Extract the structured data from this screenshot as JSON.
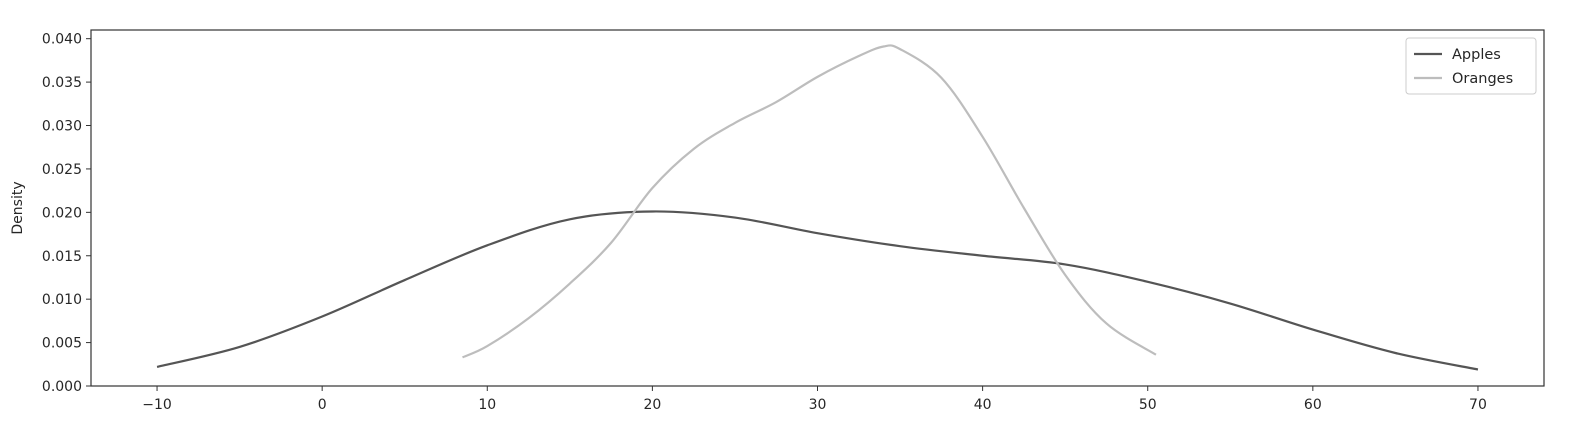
{
  "chart_data": {
    "type": "line",
    "title": "",
    "xlabel": "",
    "ylabel": "Density",
    "xlim": [
      -14,
      74
    ],
    "ylim": [
      0,
      0.041
    ],
    "xticks": [
      -10,
      0,
      10,
      20,
      30,
      40,
      50,
      60,
      70
    ],
    "xtick_labels": [
      "−10",
      "0",
      "10",
      "20",
      "30",
      "40",
      "50",
      "60",
      "70"
    ],
    "yticks": [
      0,
      0.005,
      0.01,
      0.015,
      0.02,
      0.025,
      0.03,
      0.035,
      0.04
    ],
    "ytick_labels": [
      "0.000",
      "0.005",
      "0.010",
      "0.015",
      "0.020",
      "0.025",
      "0.030",
      "0.035",
      "0.040"
    ],
    "grid": false,
    "legend_position": "top-right",
    "series": [
      {
        "name": "Apples",
        "color": "#555555",
        "x": [
          -10,
          -5,
          0,
          5,
          10,
          15,
          20,
          25,
          30,
          35,
          40,
          45,
          50,
          55,
          60,
          65,
          70
        ],
        "y": [
          0.0022,
          0.0045,
          0.008,
          0.0122,
          0.0162,
          0.0192,
          0.0201,
          0.0194,
          0.0176,
          0.0161,
          0.015,
          0.014,
          0.012,
          0.0095,
          0.0065,
          0.0038,
          0.0019
        ]
      },
      {
        "name": "Oranges",
        "color": "#bdbdbd",
        "x": [
          8.5,
          10,
          12.5,
          15,
          17.5,
          20,
          22.5,
          25,
          27.5,
          30,
          32.5,
          34,
          35,
          37.5,
          40,
          42.5,
          45,
          47.5,
          50.5
        ],
        "y": [
          0.0033,
          0.0046,
          0.0078,
          0.0118,
          0.0165,
          0.0228,
          0.0273,
          0.0303,
          0.0327,
          0.0356,
          0.038,
          0.0391,
          0.0388,
          0.0355,
          0.0287,
          0.0205,
          0.0128,
          0.0072,
          0.0036
        ]
      }
    ]
  }
}
